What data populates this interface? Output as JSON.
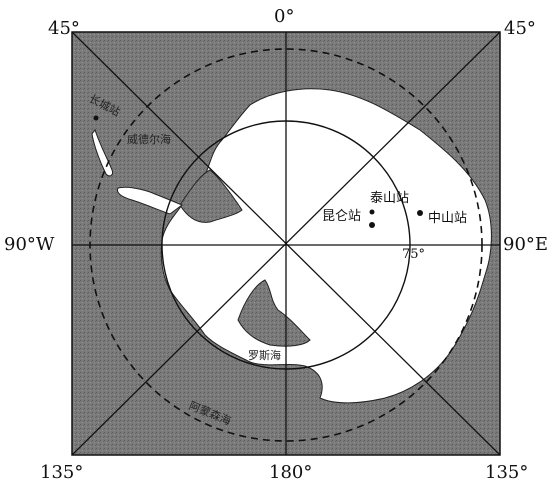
{
  "labels": {
    "top_left": "45°",
    "top_center": "0°",
    "top_right": "45°",
    "left_mid": "90°W",
    "right_mid": "90°E",
    "bottom_left": "135°",
    "bottom_center": "180°",
    "bottom_right": "135°",
    "lat_75": "75°"
  },
  "places": {
    "kunlun": "昆仑站",
    "taishan": "泰山站",
    "zhongshan": "中山站",
    "changcheng": "长城站",
    "weddell": "威德尔海",
    "ross": "罗斯海",
    "amundsen": "阿蒙森海"
  },
  "colors": {
    "ocean": "#7a7a7a",
    "land": "#ffffff",
    "line": "#111111"
  }
}
